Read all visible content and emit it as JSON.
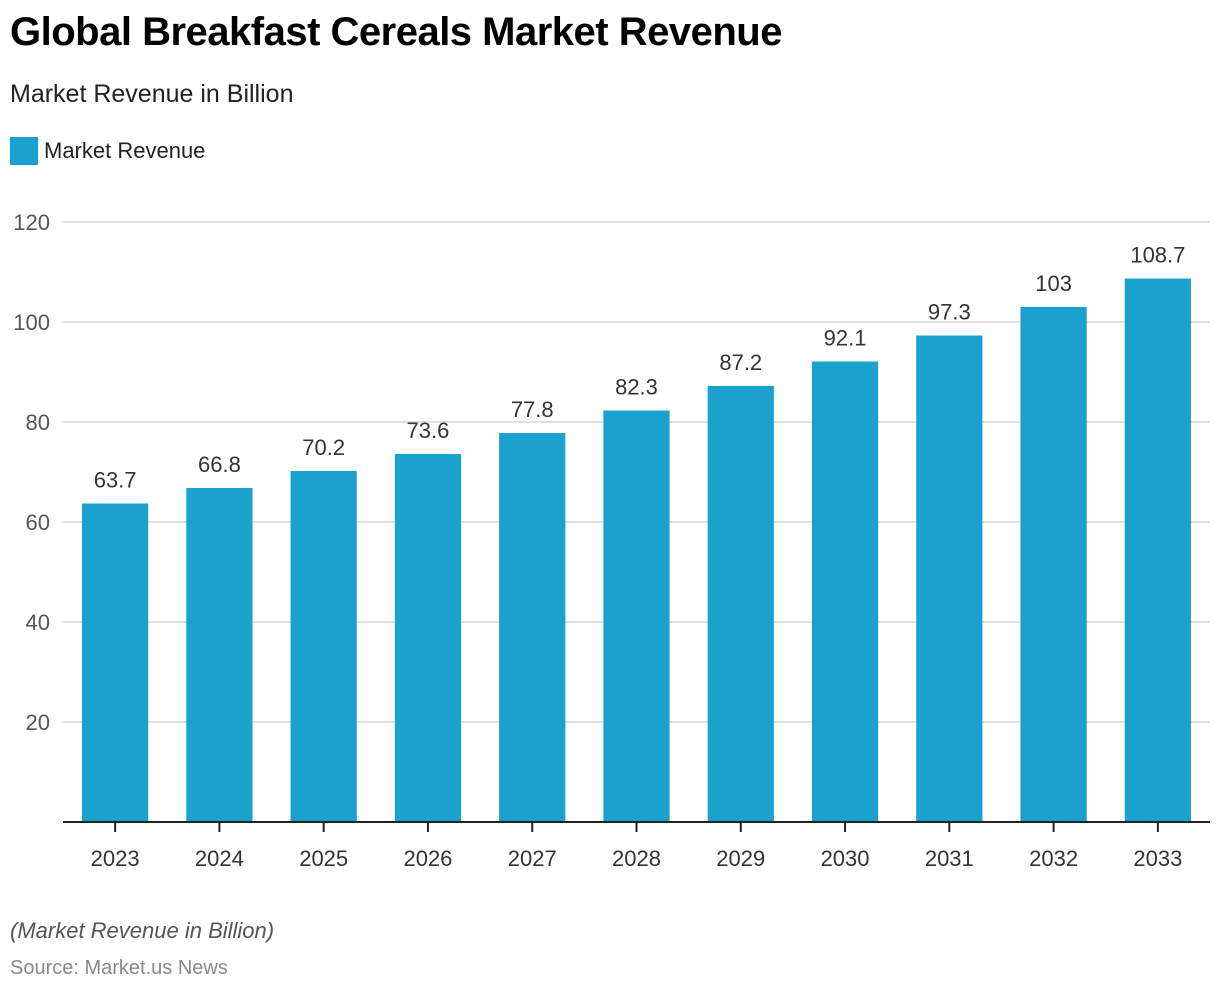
{
  "title": "Global Breakfast Cereals Market Revenue",
  "subtitle": "Market Revenue in Billion",
  "legend": [
    {
      "label": "Market Revenue",
      "color": "#1aa1cd"
    }
  ],
  "footnote": "(Market Revenue in Billion)",
  "source": "Source: Market.us News",
  "chart_data": {
    "type": "bar",
    "title": "Global Breakfast Cereals Market Revenue",
    "subtitle": "Market Revenue in Billion",
    "xlabel": "",
    "ylabel": "",
    "categories": [
      "2023",
      "2024",
      "2025",
      "2026",
      "2027",
      "2028",
      "2029",
      "2030",
      "2031",
      "2032",
      "2033"
    ],
    "series": [
      {
        "name": "Market Revenue",
        "color": "#1aa1cd",
        "values": [
          63.7,
          66.8,
          70.2,
          73.6,
          77.8,
          82.3,
          87.2,
          92.1,
          97.3,
          103,
          108.7
        ],
        "labels": [
          "63.7",
          "66.8",
          "70.2",
          "73.6",
          "77.8",
          "82.3",
          "87.2",
          "92.1",
          "97.3",
          "103",
          "108.7"
        ]
      }
    ],
    "ylim": [
      0,
      120
    ],
    "yticks": [
      20,
      40,
      60,
      80,
      100,
      120
    ],
    "grid": true,
    "legend_position": "top-left"
  }
}
